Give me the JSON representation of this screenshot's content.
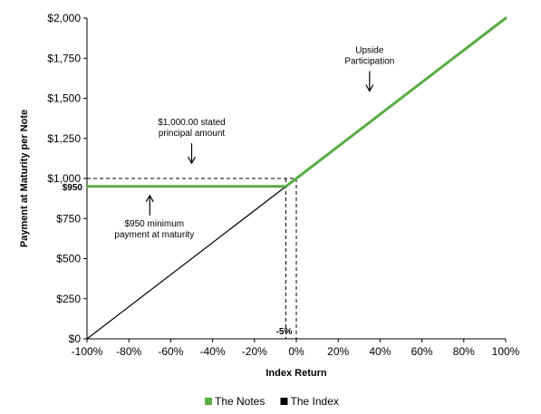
{
  "chart_data": {
    "type": "line",
    "xlabel": "Index Return",
    "ylabel": "Payment at Maturity per Note",
    "xlim": [
      -100,
      100
    ],
    "ylim": [
      0,
      2000
    ],
    "x_ticks": [
      -100,
      -80,
      -60,
      -40,
      -20,
      0,
      20,
      40,
      60,
      80,
      100
    ],
    "x_tick_labels": [
      "-100%",
      "-80%",
      "-60%",
      "-40%",
      "-20%",
      "0%",
      "20%",
      "40%",
      "60%",
      "80%",
      "100%"
    ],
    "y_ticks": [
      0,
      250,
      500,
      750,
      1000,
      1250,
      1500,
      1750,
      2000
    ],
    "y_tick_labels": [
      "$0",
      "$250",
      "$500",
      "$750",
      "$1,000",
      "$1,250",
      "$1,500",
      "$1,750",
      "$2,000"
    ],
    "series": [
      {
        "name": "The Notes",
        "color": "#5aac44",
        "points": [
          [
            -100,
            950
          ],
          [
            -5,
            950
          ],
          [
            0,
            1000
          ],
          [
            100,
            2000
          ]
        ]
      },
      {
        "name": "The Index",
        "color": "#000000",
        "points": [
          [
            -100,
            0
          ],
          [
            0,
            1000
          ]
        ]
      }
    ],
    "reference_lines": {
      "y_value": 1000,
      "x_values": [
        -5,
        0
      ]
    },
    "extra_labels": {
      "y_950": "$950",
      "x_minus5": "-5%"
    },
    "annotations": [
      {
        "lines": [
          "$1,000.00 stated",
          "principal amount"
        ],
        "x": -50,
        "y": 1050,
        "direction": "down"
      },
      {
        "lines": [
          "$950 minimum",
          "payment at maturity"
        ],
        "x": -70,
        "y": 650,
        "direction": "up"
      },
      {
        "lines": [
          "Upside",
          "Participation"
        ],
        "x": 35,
        "y": 1500,
        "direction": "down"
      }
    ],
    "grid": false,
    "legend_position": "bottom"
  }
}
